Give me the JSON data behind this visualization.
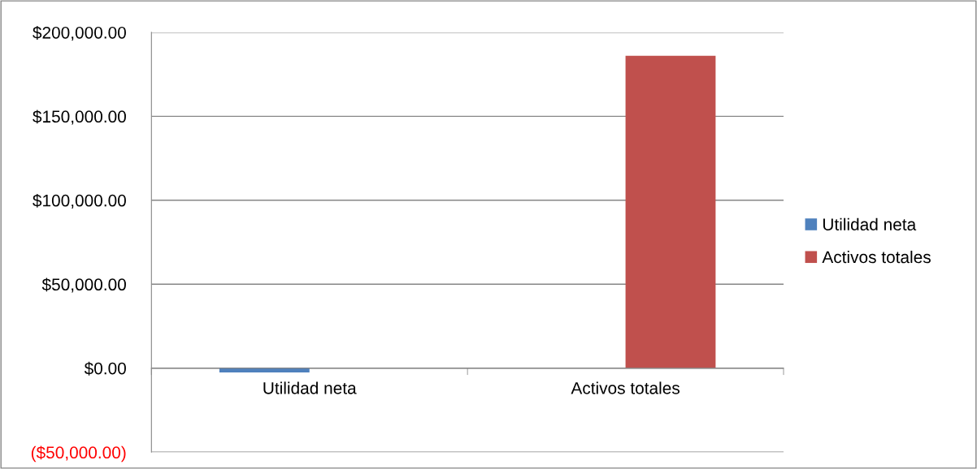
{
  "chart_data": {
    "type": "bar",
    "categories": [
      "Utilidad neta",
      "Activos totales"
    ],
    "series": [
      {
        "name": "Utilidad neta",
        "color": "#4f81bd",
        "values": [
          -2500,
          null
        ]
      },
      {
        "name": "Activos totales",
        "color": "#c0504d",
        "values": [
          null,
          186000
        ]
      }
    ],
    "ylim": [
      -50000,
      200000
    ],
    "yticks": [
      {
        "value": -50000,
        "label": "($50,000.00)"
      },
      {
        "value": 0,
        "label": "$0.00"
      },
      {
        "value": 50000,
        "label": "$50,000.00"
      },
      {
        "value": 100000,
        "label": "$100,000.00"
      },
      {
        "value": 150000,
        "label": "$150,000.00"
      },
      {
        "value": 200000,
        "label": "$200,000.00"
      }
    ],
    "grid": "y",
    "legend": "right"
  }
}
